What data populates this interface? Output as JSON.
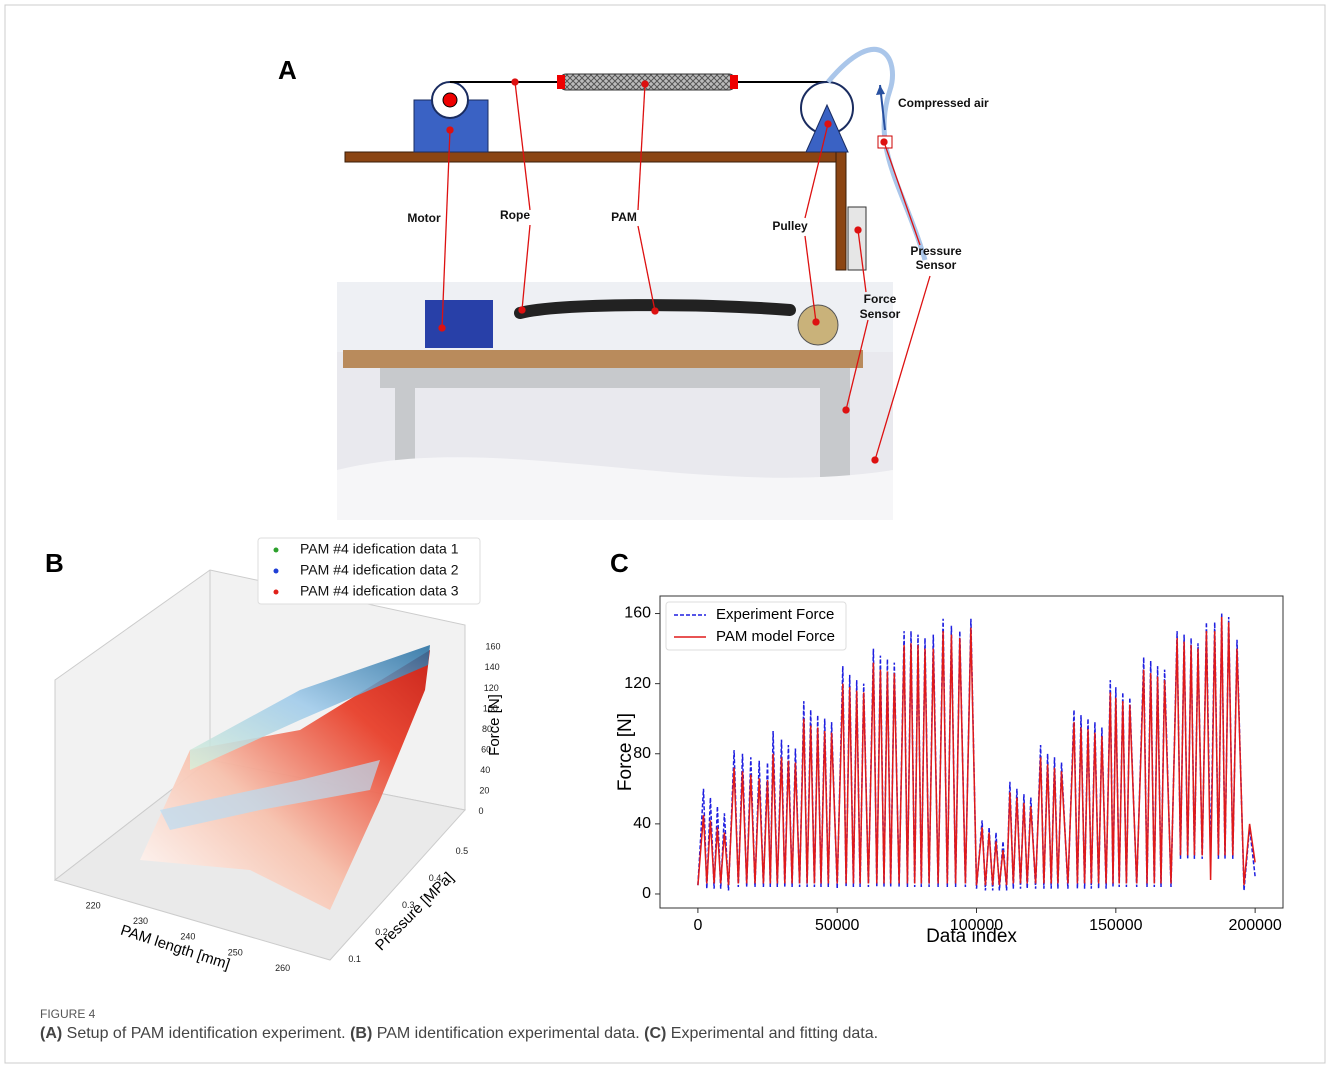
{
  "figure": {
    "panel_a": {
      "panel_label": "A",
      "labels": [
        "Motor",
        "Rope",
        "PAM",
        "Pulley",
        "Force",
        "Sensor",
        "Pressure",
        "Sensor",
        "Compressed air"
      ]
    },
    "caption": {
      "label": "FIGURE 4",
      "parts": [
        {
          "bold": "(A)",
          "text": " Setup of PAM identification experiment. "
        },
        {
          "bold": "(B)",
          "text": " PAM identification experimental data. "
        },
        {
          "bold": "(C)",
          "text": " Experimental and fitting data."
        }
      ]
    }
  },
  "chart_data": [
    {
      "type": "scatter3d",
      "panel_label": "B",
      "xlabel": "PAM length [mm]",
      "ylabel": "Pressure [MPa]",
      "zlabel": "Force [N]",
      "series": [
        {
          "name": "PAM #4 idefication data 1",
          "color": "#2ca02c"
        },
        {
          "name": "PAM #4 idefication data 2",
          "color": "#1f3fd6"
        },
        {
          "name": "PAM #4 idefication data 3",
          "color": "#e0201a"
        }
      ],
      "xlim": [
        213,
        266
      ],
      "xticks": [
        220,
        230,
        240,
        250,
        260
      ],
      "ylim": [
        0.05,
        0.55
      ],
      "yticks": [
        0.1,
        0.2,
        0.3,
        0.4,
        0.5
      ],
      "zlim": [
        -10,
        170
      ],
      "zticks": [
        0,
        20,
        40,
        60,
        80,
        100,
        120,
        140,
        160
      ]
    },
    {
      "type": "line",
      "panel_label": "C",
      "xlabel": "Data index",
      "ylabel": "Force [N]",
      "legend": "upper left",
      "xlim": [
        -13600,
        210000
      ],
      "xticks": [
        0,
        50000,
        100000,
        150000,
        200000
      ],
      "ylim": [
        -8,
        170
      ],
      "yticks": [
        0,
        40,
        80,
        120,
        160
      ],
      "x": [
        0,
        2000,
        3200,
        4500,
        5800,
        7000,
        8200,
        9500,
        11000,
        13000,
        14500,
        16000,
        17500,
        19000,
        20500,
        22000,
        23500,
        25000,
        26000,
        27000,
        28500,
        30000,
        31200,
        32500,
        33800,
        35000,
        36500,
        38000,
        39200,
        40500,
        41800,
        43000,
        44200,
        45500,
        46800,
        48000,
        50000,
        52000,
        53200,
        54500,
        55800,
        57000,
        58200,
        59500,
        61200,
        63000,
        64200,
        65500,
        66800,
        68000,
        69200,
        70500,
        72200,
        74000,
        75200,
        76500,
        77800,
        79000,
        80200,
        81500,
        83000,
        84500,
        86200,
        88000,
        89500,
        91000,
        92500,
        94000,
        96000,
        98000,
        100000,
        102000,
        103200,
        104500,
        105800,
        107000,
        108200,
        109500,
        110800,
        112000,
        113200,
        114500,
        115800,
        117000,
        118200,
        119500,
        121200,
        123000,
        124200,
        125500,
        126800,
        128000,
        129200,
        130500,
        132800,
        135000,
        136200,
        137500,
        138800,
        140000,
        141200,
        142500,
        143800,
        145000,
        146500,
        148000,
        149000,
        150000,
        151200,
        152500,
        153800,
        155000,
        157500,
        160000,
        161200,
        162500,
        163800,
        165000,
        166200,
        167500,
        169800,
        172000,
        173200,
        174500,
        175800,
        177000,
        178200,
        179500,
        181000,
        182500,
        184000,
        185500,
        186800,
        188000,
        189200,
        190500,
        192000,
        193500,
        196000,
        198000,
        200000
      ],
      "series": [
        {
          "name": "Experiment Force",
          "color": "#1f1fe0",
          "dashed": true,
          "values": [
            5,
            60,
            3,
            55,
            3,
            50,
            3,
            46,
            2,
            82,
            4,
            80,
            4,
            78,
            4,
            76,
            4,
            75,
            4,
            93,
            4,
            88,
            4,
            85,
            4,
            83,
            4,
            110,
            4,
            105,
            4,
            102,
            4,
            100,
            4,
            98,
            3,
            130,
            4,
            125,
            4,
            122,
            4,
            120,
            4,
            140,
            4,
            136,
            4,
            134,
            4,
            132,
            4,
            150,
            4,
            150,
            4,
            148,
            4,
            146,
            4,
            148,
            4,
            157,
            4,
            153,
            4,
            150,
            4,
            157,
            3,
            42,
            2,
            38,
            2,
            35,
            2,
            30,
            2,
            64,
            3,
            60,
            3,
            57,
            3,
            55,
            3,
            85,
            3,
            80,
            3,
            78,
            3,
            75,
            3,
            105,
            3,
            102,
            3,
            100,
            3,
            98,
            3,
            95,
            3,
            122,
            4,
            118,
            4,
            115,
            4,
            112,
            4,
            135,
            4,
            133,
            4,
            130,
            4,
            128,
            4,
            150,
            20,
            148,
            20,
            146,
            20,
            143,
            20,
            155,
            20,
            155,
            20,
            160,
            20,
            158,
            20,
            145,
            2,
            38,
            10
          ]
        },
        {
          "name": "PAM model Force",
          "color": "#e01a1a",
          "dashed": false,
          "values": [
            5,
            45,
            6,
            42,
            6,
            38,
            6,
            35,
            5,
            72,
            6,
            70,
            6,
            68,
            6,
            66,
            6,
            65,
            6,
            80,
            6,
            78,
            6,
            76,
            6,
            75,
            6,
            100,
            6,
            96,
            6,
            95,
            6,
            93,
            6,
            92,
            6,
            120,
            6,
            118,
            6,
            116,
            6,
            115,
            6,
            132,
            6,
            128,
            6,
            127,
            6,
            126,
            6,
            142,
            6,
            143,
            6,
            142,
            6,
            140,
            6,
            140,
            6,
            150,
            6,
            148,
            6,
            146,
            6,
            152,
            5,
            38,
            5,
            35,
            5,
            30,
            5,
            25,
            5,
            58,
            6,
            55,
            6,
            52,
            6,
            50,
            6,
            78,
            6,
            74,
            6,
            72,
            6,
            70,
            6,
            98,
            6,
            95,
            6,
            94,
            6,
            92,
            6,
            90,
            6,
            115,
            6,
            112,
            6,
            110,
            6,
            108,
            6,
            128,
            6,
            126,
            6,
            124,
            6,
            122,
            6,
            146,
            22,
            144,
            22,
            142,
            22,
            140,
            22,
            150,
            8,
            150,
            22,
            158,
            22,
            155,
            22,
            140,
            5,
            40,
            18
          ]
        }
      ]
    }
  ]
}
